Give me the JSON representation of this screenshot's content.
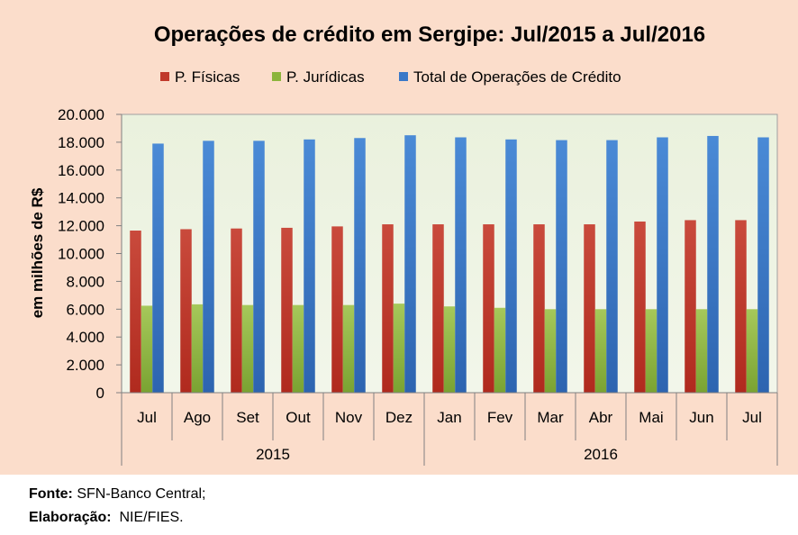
{
  "chart_data": {
    "type": "bar",
    "title": "Operações de crédito em Sergipe:  Jul/2015 a Jul/2016",
    "ylabel": "em milhões de R$",
    "xlabel": "",
    "ylim": [
      0,
      20000
    ],
    "yticks": [
      "0",
      "2.000",
      "4.000",
      "6.000",
      "8.000",
      "10.000",
      "12.000",
      "14.000",
      "16.000",
      "18.000",
      "20.000"
    ],
    "grid": false,
    "legend_position": "top",
    "categories": [
      "Jul",
      "Ago",
      "Set",
      "Out",
      "Nov",
      "Dez",
      "Jan",
      "Fev",
      "Mar",
      "Abr",
      "Mai",
      "Jun",
      "Jul"
    ],
    "year_groups": [
      {
        "label": "2015",
        "count": 6
      },
      {
        "label": "2016",
        "count": 7
      }
    ],
    "series": [
      {
        "name": "P. Físicas",
        "color": "#c0392b",
        "values": [
          11650,
          11750,
          11800,
          11850,
          11950,
          12100,
          12100,
          12100,
          12100,
          12100,
          12300,
          12400,
          12400
        ]
      },
      {
        "name": "P. Jurídicas",
        "color": "#8cb43c",
        "values": [
          6250,
          6350,
          6300,
          6300,
          6300,
          6400,
          6200,
          6100,
          6000,
          6000,
          6000,
          6000,
          6000
        ]
      },
      {
        "name": "Total de Operações de Crédito",
        "color": "#3a78c8",
        "values": [
          17900,
          18100,
          18100,
          18200,
          18300,
          18500,
          18350,
          18200,
          18150,
          18150,
          18350,
          18450,
          18350
        ]
      }
    ]
  },
  "footer": {
    "source_label": "Fonte:",
    "source_value": " SFN-Banco Central;",
    "credit_label": "Elaboração:",
    "credit_value": "  NIE/FIES."
  }
}
